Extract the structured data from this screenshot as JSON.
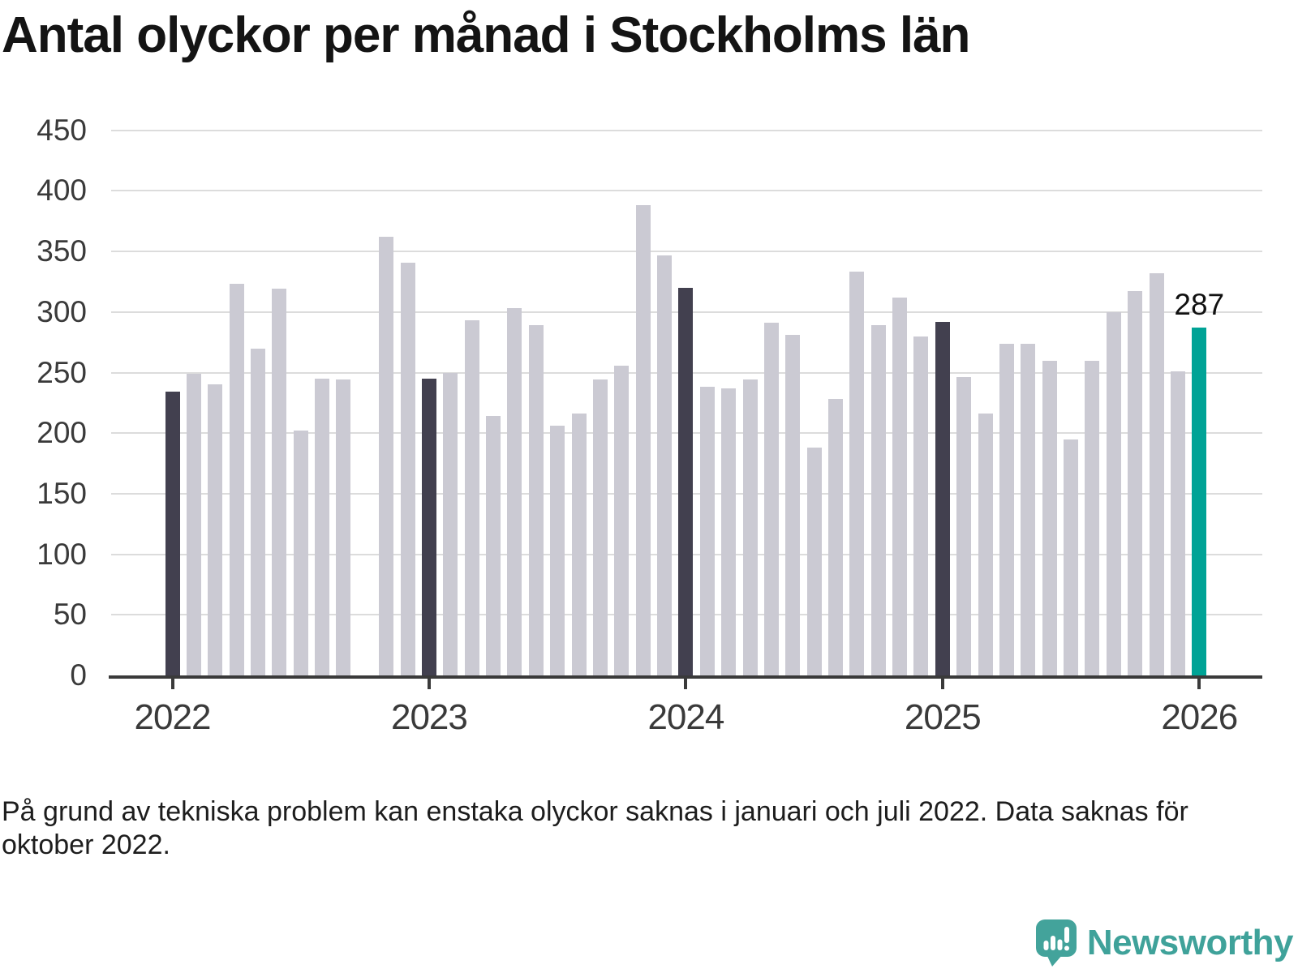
{
  "title": "Antal olyckor per månad i Stockholms län",
  "footnote": "På grund av tekniska problem kan enstaka olyckor saknas i januari och juli 2022. Data saknas för oktober 2022.",
  "annotation": {
    "value_label": "287"
  },
  "logo": {
    "brand": "Newsworthy"
  },
  "colors": {
    "bar_regular": "#cbcad3",
    "bar_january": "#42404f",
    "bar_latest": "#00a396",
    "gridline": "#dcdcdc",
    "axis": "#3a3a3a",
    "tick_label": "#3a3a3a",
    "title": "#141414",
    "footnote": "#1d1d1d",
    "logo": "#3fa29a"
  },
  "chart_data": {
    "type": "bar",
    "title": "Antal olyckor per månad i Stockholms län",
    "xlabel": "",
    "ylabel": "",
    "ylim": [
      0,
      450
    ],
    "grid": true,
    "y_ticks": [
      0,
      50,
      100,
      150,
      200,
      250,
      300,
      350,
      400,
      450
    ],
    "x_tick_labels": [
      "2022",
      "2023",
      "2024",
      "2025",
      "2026"
    ],
    "missing_data_note": "okt 2022 saknas",
    "points": [
      {
        "x": "jan 2022",
        "value": 234,
        "role": "january"
      },
      {
        "x": "feb 2022",
        "value": 249,
        "role": "regular"
      },
      {
        "x": "mar 2022",
        "value": 240,
        "role": "regular"
      },
      {
        "x": "apr 2022",
        "value": 323,
        "role": "regular"
      },
      {
        "x": "maj 2022",
        "value": 270,
        "role": "regular"
      },
      {
        "x": "jun 2022",
        "value": 319,
        "role": "regular"
      },
      {
        "x": "jul 2022",
        "value": 202,
        "role": "regular"
      },
      {
        "x": "aug 2022",
        "value": 245,
        "role": "regular"
      },
      {
        "x": "sep 2022",
        "value": 244,
        "role": "regular"
      },
      {
        "x": "okt 2022",
        "value": null,
        "role": "regular"
      },
      {
        "x": "nov 2022",
        "value": 362,
        "role": "regular"
      },
      {
        "x": "dec 2022",
        "value": 341,
        "role": "regular"
      },
      {
        "x": "jan 2023",
        "value": 245,
        "role": "january"
      },
      {
        "x": "feb 2023",
        "value": 250,
        "role": "regular"
      },
      {
        "x": "mar 2023",
        "value": 293,
        "role": "regular"
      },
      {
        "x": "apr 2023",
        "value": 214,
        "role": "regular"
      },
      {
        "x": "maj 2023",
        "value": 303,
        "role": "regular"
      },
      {
        "x": "jun 2023",
        "value": 289,
        "role": "regular"
      },
      {
        "x": "jul 2023",
        "value": 206,
        "role": "regular"
      },
      {
        "x": "aug 2023",
        "value": 216,
        "role": "regular"
      },
      {
        "x": "sep 2023",
        "value": 244,
        "role": "regular"
      },
      {
        "x": "okt 2023",
        "value": 256,
        "role": "regular"
      },
      {
        "x": "nov 2023",
        "value": 388,
        "role": "regular"
      },
      {
        "x": "dec 2023",
        "value": 347,
        "role": "regular"
      },
      {
        "x": "jan 2024",
        "value": 320,
        "role": "january"
      },
      {
        "x": "feb 2024",
        "value": 238,
        "role": "regular"
      },
      {
        "x": "mar 2024",
        "value": 237,
        "role": "regular"
      },
      {
        "x": "apr 2024",
        "value": 244,
        "role": "regular"
      },
      {
        "x": "maj 2024",
        "value": 291,
        "role": "regular"
      },
      {
        "x": "jun 2024",
        "value": 281,
        "role": "regular"
      },
      {
        "x": "jul 2024",
        "value": 188,
        "role": "regular"
      },
      {
        "x": "aug 2024",
        "value": 228,
        "role": "regular"
      },
      {
        "x": "sep 2024",
        "value": 333,
        "role": "regular"
      },
      {
        "x": "okt 2024",
        "value": 289,
        "role": "regular"
      },
      {
        "x": "nov 2024",
        "value": 312,
        "role": "regular"
      },
      {
        "x": "dec 2024",
        "value": 280,
        "role": "regular"
      },
      {
        "x": "jan 2025",
        "value": 292,
        "role": "january"
      },
      {
        "x": "feb 2025",
        "value": 246,
        "role": "regular"
      },
      {
        "x": "mar 2025",
        "value": 216,
        "role": "regular"
      },
      {
        "x": "apr 2025",
        "value": 274,
        "role": "regular"
      },
      {
        "x": "maj 2025",
        "value": 274,
        "role": "regular"
      },
      {
        "x": "jun 2025",
        "value": 260,
        "role": "regular"
      },
      {
        "x": "jul 2025",
        "value": 195,
        "role": "regular"
      },
      {
        "x": "aug 2025",
        "value": 260,
        "role": "regular"
      },
      {
        "x": "sep 2025",
        "value": 300,
        "role": "regular"
      },
      {
        "x": "okt 2025",
        "value": 317,
        "role": "regular"
      },
      {
        "x": "nov 2025",
        "value": 332,
        "role": "regular"
      },
      {
        "x": "dec 2025",
        "value": 251,
        "role": "regular"
      },
      {
        "x": "jan 2026",
        "value": 287,
        "role": "latest",
        "labeled": true
      }
    ]
  }
}
